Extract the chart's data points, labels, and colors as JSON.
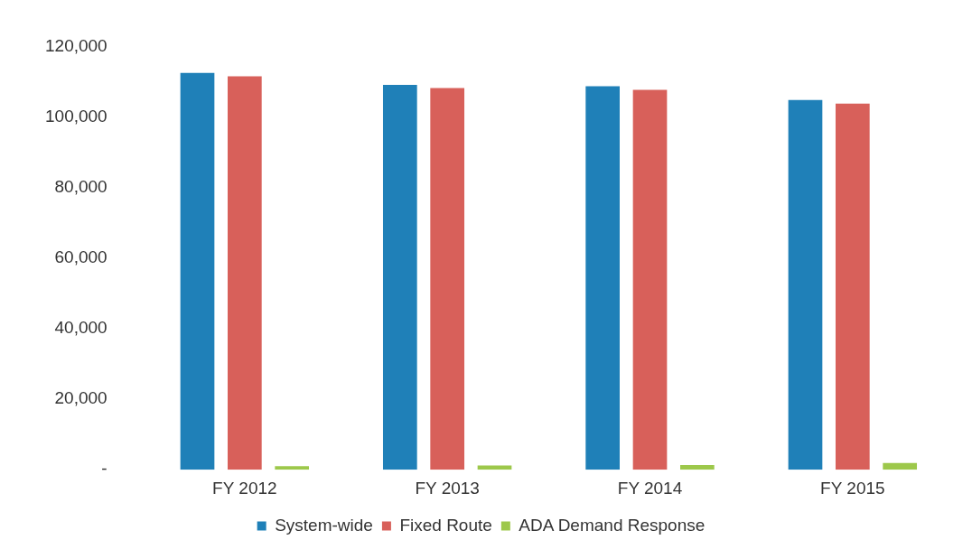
{
  "chart_data": {
    "type": "bar",
    "categories": [
      "FY 2012",
      "FY 2013",
      "FY 2014",
      "FY 2015"
    ],
    "series": [
      {
        "name": "System-wide",
        "color": "#1f80b8",
        "values": [
          112500,
          109100,
          108700,
          104800
        ]
      },
      {
        "name": "Fixed Route",
        "color": "#d8605a",
        "values": [
          111500,
          108200,
          107700,
          103800
        ]
      },
      {
        "name": "ADA Demand Response",
        "color": "#9dc84b",
        "values": [
          1000,
          1200,
          1300,
          1900
        ]
      }
    ],
    "ylim": [
      0,
      120000
    ],
    "yticks": [
      {
        "value": 0,
        "label": "-"
      },
      {
        "value": 20000,
        "label": "20,000"
      },
      {
        "value": 40000,
        "label": "40,000"
      },
      {
        "value": 60000,
        "label": "60,000"
      },
      {
        "value": 80000,
        "label": "80,000"
      },
      {
        "value": 100000,
        "label": "100,000"
      },
      {
        "value": 120000,
        "label": "120,000"
      }
    ],
    "grid": false,
    "legend": "bottom"
  }
}
